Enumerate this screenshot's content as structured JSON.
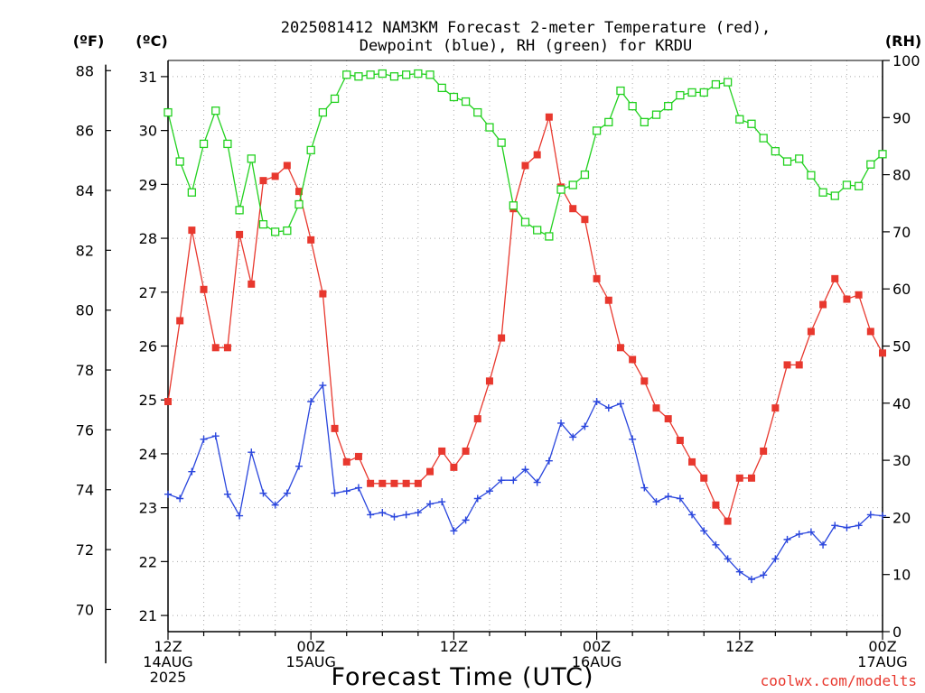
{
  "chart_data": {
    "type": "line",
    "title_lines": [
      "2025081412 NAM3KM Forecast 2-meter Temperature (red),",
      "Dewpoint (blue), RH (green) for KRDU"
    ],
    "xlabel": "Forecast Time (UTC)",
    "units": {
      "fahrenheit": "(ºF)",
      "celsius": "(ºC)",
      "rh": "(RH)"
    },
    "credit": "coolwx.com/modelts",
    "x_ticks": [
      {
        "hour": 0,
        "lines": [
          "12Z",
          "14AUG",
          "2025"
        ]
      },
      {
        "hour": 12,
        "lines": [
          "00Z",
          "15AUG"
        ]
      },
      {
        "hour": 24,
        "lines": [
          "12Z"
        ]
      },
      {
        "hour": 36,
        "lines": [
          "00Z",
          "16AUG"
        ]
      },
      {
        "hour": 48,
        "lines": [
          "12Z"
        ]
      },
      {
        "hour": 60,
        "lines": [
          "00Z",
          "17AUG"
        ]
      }
    ],
    "xlim": [
      0,
      60
    ],
    "celsius_axis": {
      "ylim": [
        20.7,
        31.3
      ],
      "ticks": [
        21,
        22,
        23,
        24,
        25,
        26,
        27,
        28,
        29,
        30,
        31
      ]
    },
    "fahrenheit_axis": {
      "ticks": [
        70,
        72,
        74,
        76,
        78,
        80,
        82,
        84,
        86,
        88
      ]
    },
    "rh_axis": {
      "ylim": [
        0,
        100
      ],
      "ticks": [
        0,
        10,
        20,
        30,
        40,
        50,
        60,
        70,
        80,
        90,
        100
      ]
    },
    "grid": true,
    "series": [
      {
        "name": "Temperature",
        "color": "#e8382e",
        "marker": "filled-square",
        "axis": "celsius",
        "x": [
          0,
          1,
          2,
          3,
          4,
          5,
          6,
          7,
          8,
          9,
          10,
          11,
          12,
          13,
          14,
          15,
          16,
          17,
          18,
          19,
          20,
          21,
          22,
          23,
          24,
          25,
          26,
          27,
          28,
          29,
          30,
          31,
          32,
          33,
          34,
          35,
          36,
          37,
          38,
          39,
          40,
          41,
          42,
          43,
          44,
          45,
          46,
          47,
          48,
          49,
          50,
          51,
          52,
          53,
          54,
          55,
          56,
          57,
          58,
          59,
          60
        ],
        "values": [
          24.97,
          26.47,
          28.15,
          27.05,
          25.97,
          25.97,
          28.07,
          27.15,
          29.07,
          29.15,
          29.35,
          28.87,
          27.97,
          26.97,
          24.47,
          23.85,
          23.95,
          23.45,
          23.45,
          23.45,
          23.45,
          23.45,
          23.67,
          24.05,
          23.75,
          24.05,
          24.65,
          25.35,
          26.15,
          28.55,
          29.35,
          29.55,
          30.25,
          28.95,
          28.55,
          28.35,
          27.25,
          26.85,
          25.97,
          25.75,
          25.35,
          24.85,
          24.65,
          24.25,
          23.85,
          23.55,
          23.05,
          22.75,
          23.55,
          23.55,
          24.05,
          24.85,
          25.65,
          25.65,
          26.27,
          26.77,
          27.25,
          26.87,
          26.95,
          26.27,
          25.87
        ]
      },
      {
        "name": "Dewpoint",
        "color": "#2a46dd",
        "marker": "plus",
        "axis": "celsius",
        "x": [
          0,
          1,
          2,
          3,
          4,
          5,
          6,
          7,
          8,
          9,
          10,
          11,
          12,
          13,
          14,
          15,
          16,
          17,
          18,
          19,
          20,
          21,
          22,
          23,
          24,
          25,
          26,
          27,
          28,
          29,
          30,
          31,
          32,
          33,
          34,
          35,
          36,
          37,
          38,
          39,
          40,
          41,
          42,
          43,
          44,
          45,
          46,
          47,
          48,
          49,
          50,
          51,
          52,
          53,
          54,
          55,
          56,
          57,
          58,
          59,
          60
        ],
        "values": [
          23.25,
          23.17,
          23.67,
          24.27,
          24.33,
          23.25,
          22.85,
          24.03,
          23.27,
          23.05,
          23.27,
          23.77,
          24.97,
          25.27,
          23.27,
          23.31,
          23.37,
          22.87,
          22.91,
          22.83,
          22.87,
          22.91,
          23.07,
          23.11,
          22.57,
          22.77,
          23.17,
          23.31,
          23.51,
          23.51,
          23.71,
          23.47,
          23.87,
          24.57,
          24.31,
          24.51,
          24.97,
          24.85,
          24.93,
          24.27,
          23.37,
          23.11,
          23.21,
          23.17,
          22.87,
          22.57,
          22.31,
          22.05,
          21.81,
          21.67,
          21.75,
          22.05,
          22.41,
          22.51,
          22.55,
          22.31,
          22.67,
          22.63,
          22.67,
          22.87,
          22.85
        ]
      },
      {
        "name": "RH",
        "color": "#22d11f",
        "marker": "open-square",
        "axis": "rh",
        "x": [
          0,
          1,
          2,
          3,
          4,
          5,
          6,
          7,
          8,
          9,
          10,
          11,
          12,
          13,
          14,
          15,
          16,
          17,
          18,
          19,
          20,
          21,
          22,
          23,
          24,
          25,
          26,
          27,
          28,
          29,
          30,
          31,
          32,
          33,
          34,
          35,
          36,
          37,
          38,
          39,
          40,
          41,
          42,
          43,
          44,
          45,
          46,
          47,
          48,
          49,
          50,
          51,
          52,
          53,
          54,
          55,
          56,
          57,
          58,
          59,
          60
        ],
        "values": [
          90.9,
          82.3,
          76.9,
          85.4,
          91.2,
          85.4,
          73.8,
          82.8,
          71.3,
          70.0,
          70.2,
          74.8,
          84.3,
          90.9,
          93.3,
          97.5,
          97.2,
          97.5,
          97.7,
          97.2,
          97.5,
          97.7,
          97.5,
          95.2,
          93.6,
          92.8,
          90.9,
          88.3,
          85.6,
          74.6,
          71.7,
          70.3,
          69.2,
          77.4,
          78.2,
          80.0,
          87.7,
          89.2,
          94.7,
          92.0,
          89.2,
          90.5,
          92.0,
          93.9,
          94.4,
          94.4,
          95.8,
          96.2,
          89.7,
          88.9,
          86.4,
          84.1,
          82.3,
          82.8,
          79.9,
          76.9,
          76.3,
          78.2,
          78.0,
          81.8,
          83.6
        ]
      }
    ]
  }
}
